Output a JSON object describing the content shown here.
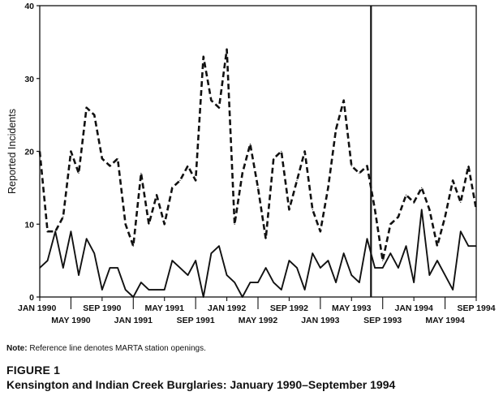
{
  "chart_data": {
    "type": "line",
    "ylabel": "Reported Incidents",
    "xlabel": "",
    "ylim": [
      0,
      40
    ],
    "yticks": [
      0,
      10,
      20,
      30,
      40
    ],
    "x_range": [
      "JAN 1990",
      "SEP 1994"
    ],
    "grid": false,
    "x_ticks": [
      {
        "label": "JAN 1990",
        "month_index": 0,
        "row": "upper"
      },
      {
        "label": "MAY 1990",
        "month_index": 4,
        "row": "lower"
      },
      {
        "label": "SEP 1990",
        "month_index": 8,
        "row": "upper"
      },
      {
        "label": "JAN 1991",
        "month_index": 12,
        "row": "lower"
      },
      {
        "label": "MAY 1991",
        "month_index": 16,
        "row": "upper"
      },
      {
        "label": "SEP 1991",
        "month_index": 20,
        "row": "lower"
      },
      {
        "label": "JAN 1992",
        "month_index": 24,
        "row": "upper"
      },
      {
        "label": "MAY 1992",
        "month_index": 28,
        "row": "lower"
      },
      {
        "label": "SEP 1992",
        "month_index": 32,
        "row": "upper"
      },
      {
        "label": "JAN 1993",
        "month_index": 36,
        "row": "lower"
      },
      {
        "label": "MAY 1993",
        "month_index": 40,
        "row": "upper"
      },
      {
        "label": "SEP 1993",
        "month_index": 44,
        "row": "lower"
      },
      {
        "label": "JAN 1994",
        "month_index": 48,
        "row": "upper"
      },
      {
        "label": "MAY 1994",
        "month_index": 52,
        "row": "lower"
      },
      {
        "label": "SEP 1994",
        "month_index": 56,
        "row": "upper"
      }
    ],
    "reference_line": {
      "month_index": 42.5
    },
    "series": [
      {
        "style": "dashed",
        "values": [
          20,
          9,
          9,
          11,
          20,
          17,
          26,
          25,
          19,
          18,
          19,
          10,
          7,
          17,
          10,
          14,
          10,
          15,
          16,
          18,
          16,
          33,
          27,
          26,
          34,
          10,
          17,
          21,
          15,
          8,
          19,
          20,
          12,
          16,
          20,
          12,
          9,
          15,
          23,
          27,
          18,
          17,
          18,
          12,
          5,
          10,
          11,
          14,
          13,
          15,
          12,
          7,
          11,
          16,
          13,
          18,
          12
        ]
      },
      {
        "style": "solid",
        "values": [
          4,
          5,
          9,
          4,
          9,
          3,
          8,
          6,
          1,
          4,
          4,
          1,
          0,
          2,
          1,
          1,
          1,
          5,
          4,
          3,
          5,
          0,
          6,
          7,
          3,
          2,
          0,
          2,
          2,
          4,
          2,
          1,
          5,
          4,
          1,
          6,
          4,
          5,
          2,
          6,
          3,
          2,
          8,
          4,
          4,
          6,
          4,
          7,
          2,
          12,
          3,
          5,
          3,
          1,
          9,
          7,
          7
        ]
      }
    ]
  },
  "note": {
    "label": "Note:",
    "text": " Reference line denotes MARTA station openings."
  },
  "figure": {
    "label": "FIGURE 1",
    "title": "Kensington and Indian Creek Burglaries: January 1990–September 1994"
  }
}
